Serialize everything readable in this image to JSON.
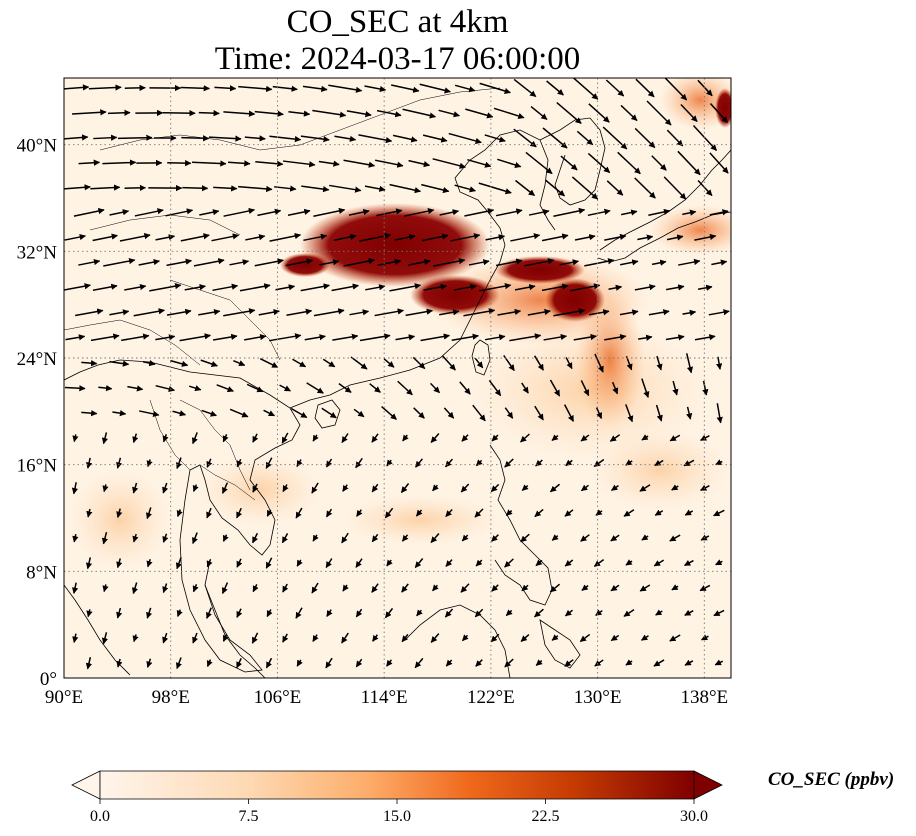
{
  "title": {
    "line1": "CO_SEC at 4km",
    "line2": "Time: 2024-03-17 06:00:00"
  },
  "map": {
    "lon_range": [
      90,
      140
    ],
    "lat_range": [
      0,
      45
    ],
    "lon_ticks": [
      90,
      98,
      106,
      114,
      122,
      130,
      138
    ],
    "lat_ticks": [
      0,
      8,
      16,
      24,
      32,
      40
    ],
    "lon_tick_labels": [
      "90°E",
      "98°E",
      "106°E",
      "114°E",
      "122°E",
      "130°E",
      "138°E"
    ],
    "lat_tick_labels": [
      "0°",
      "8°N",
      "16°N",
      "24°N",
      "32°N",
      "40°N"
    ],
    "gridlines": "dotted",
    "field_name": "CO_SEC",
    "vectors": "wind"
  },
  "colorbar": {
    "label": "CO_SEC (ppbv)",
    "min": 0.0,
    "max": 30.0,
    "ticks": [
      "0.0",
      "7.5",
      "15.0",
      "22.5",
      "30.0"
    ],
    "extend": "both",
    "colors": [
      "#fff5eb",
      "#fdd9b3",
      "#fdad6b",
      "#f06a1c",
      "#c43a02",
      "#7f0000"
    ]
  }
}
